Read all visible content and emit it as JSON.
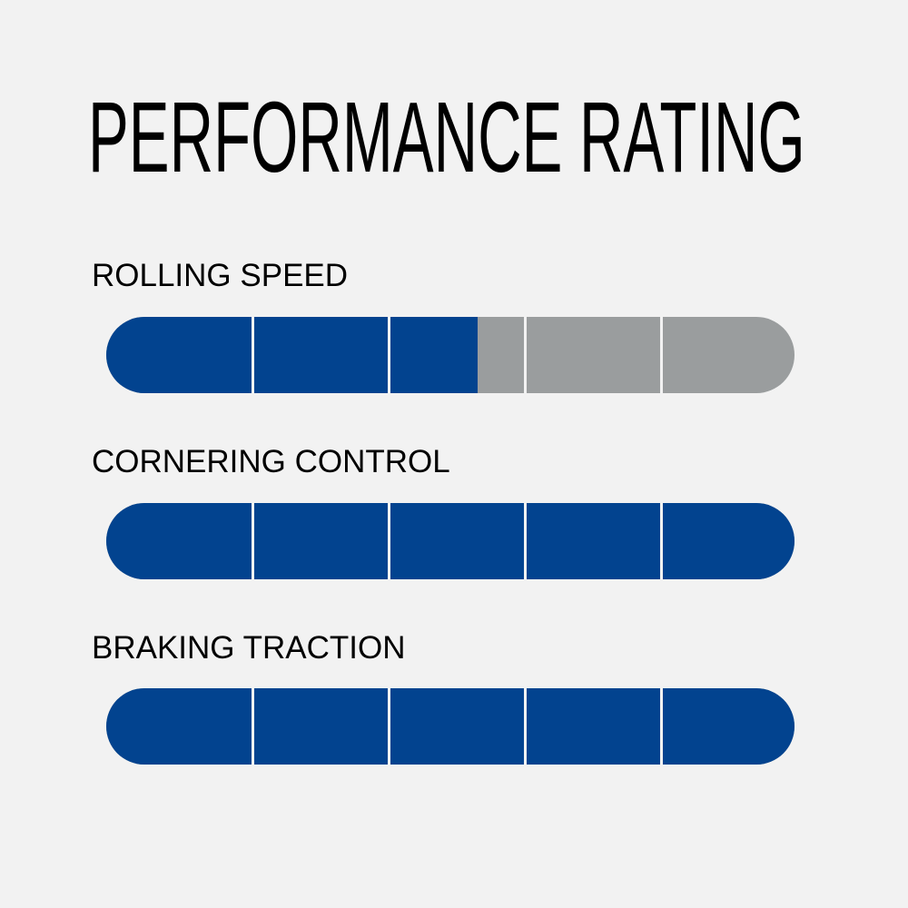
{
  "title": "PERFORMANCE RATING",
  "colors": {
    "filled": "#02438f",
    "empty": "#9a9d9e",
    "background": "#f2f2f2"
  },
  "scale_max": 5,
  "ratings": [
    {
      "label": "ROLLING SPEED",
      "value": 2.7
    },
    {
      "label": "CORNERING CONTROL",
      "value": 5
    },
    {
      "label": "BRAKING TRACTION",
      "value": 5
    }
  ]
}
